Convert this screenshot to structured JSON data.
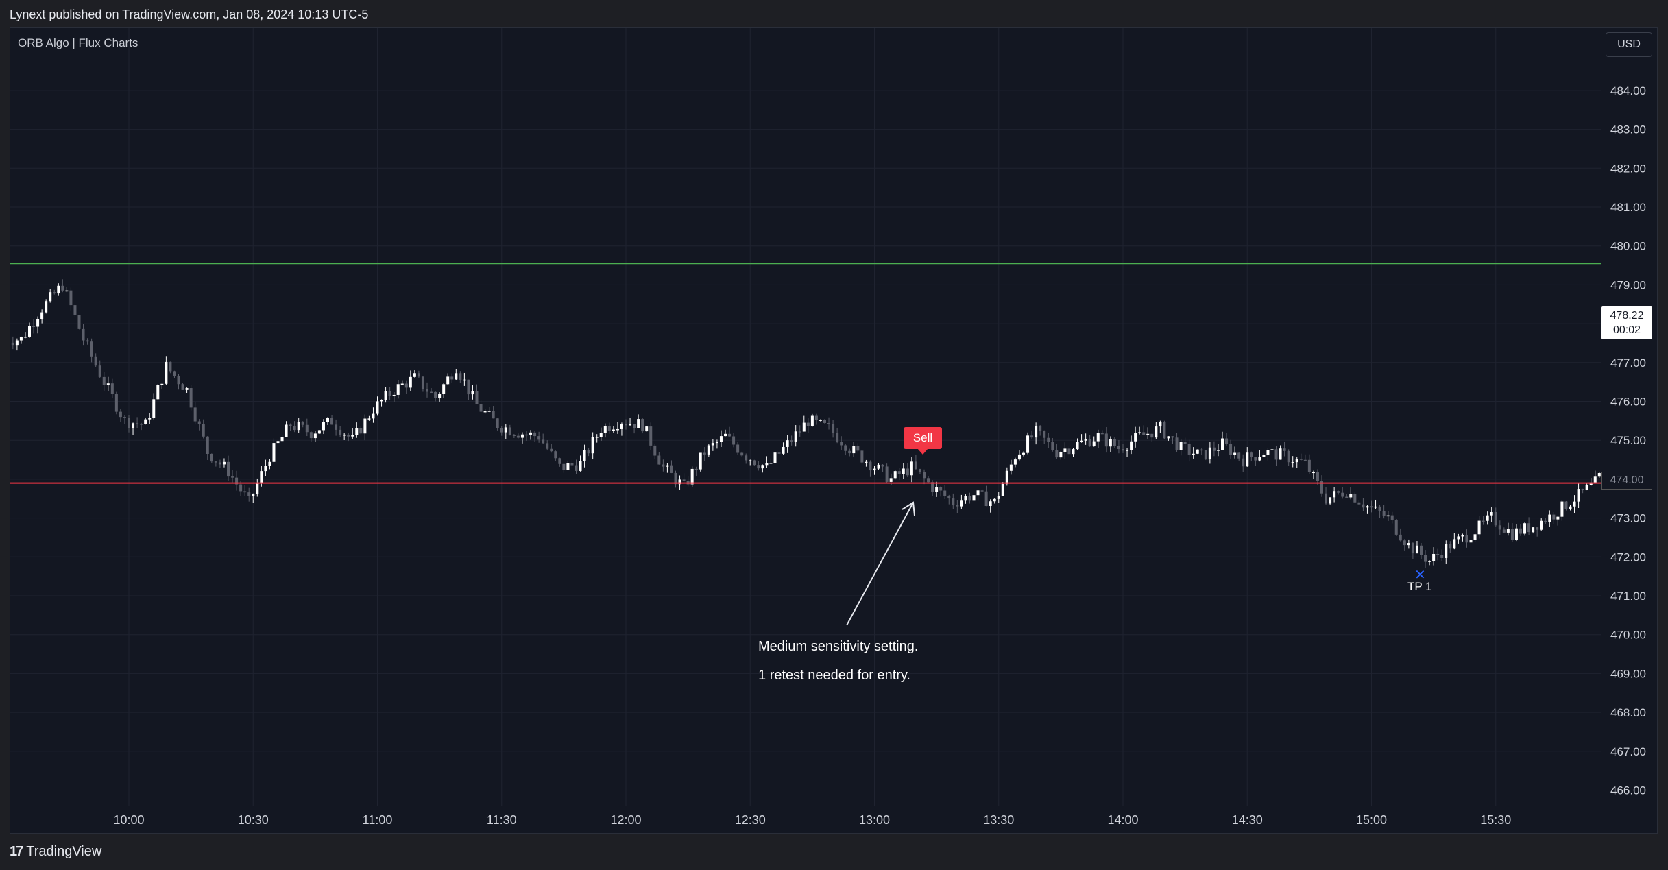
{
  "header": {
    "published_text": "Lynext published on TradingView.com, Jan 08, 2024 10:13 UTC-5"
  },
  "chart": {
    "indicator_title": "ORB Algo | Flux Charts",
    "currency": "USD",
    "last_price": "478.22",
    "countdown": "00:02",
    "level_tag": "474.00",
    "sell_label": "Sell",
    "tp_label": "TP 1",
    "tp_marker": "✕",
    "note_line1": "Medium sensitivity setting.",
    "note_line2": "1 retest needed for entry.",
    "colors": {
      "background": "#131722",
      "up_candle": "#ffffff",
      "down_candle": "#5d606b",
      "orb_high": "#4caf50",
      "orb_low": "#f23645",
      "tp_marker": "#2962ff"
    }
  },
  "footer": {
    "logo_text": "TradingView",
    "logo_mark": "17"
  },
  "chart_data": {
    "type": "candlestick",
    "title": "ORB Algo | Flux Charts",
    "price_ticks": [
      "466.00",
      "467.00",
      "468.00",
      "469.00",
      "470.00",
      "471.00",
      "472.00",
      "473.00",
      "474.00",
      "475.00",
      "476.00",
      "477.00",
      "478.00",
      "479.00",
      "480.00",
      "481.00",
      "482.00",
      "483.00",
      "484.00"
    ],
    "time_ticks": [
      "10:00",
      "10:30",
      "11:00",
      "11:30",
      "12:00",
      "12:30",
      "13:00",
      "13:30",
      "14:00",
      "14:30",
      "15:00",
      "15:30"
    ],
    "ylim": [
      465.6,
      485.0
    ],
    "session": [
      "09:30",
      "16:00"
    ],
    "orb_high": 479.55,
    "orb_low": 473.9,
    "last_price": 478.22,
    "sell_signal": {
      "time": "13:12",
      "price": 474.6,
      "label": "Sell"
    },
    "take_profit": {
      "time": "15:13",
      "price": 471.6,
      "label": "TP 1"
    },
    "closes": [
      {
        "t": "09:30",
        "c": 477.6
      },
      {
        "t": "09:35",
        "c": 478.4
      },
      {
        "t": "09:40",
        "c": 479.0
      },
      {
        "t": "09:45",
        "c": 477.6
      },
      {
        "t": "09:50",
        "c": 476.5
      },
      {
        "t": "09:55",
        "c": 475.5
      },
      {
        "t": "10:00",
        "c": 475.4
      },
      {
        "t": "10:05",
        "c": 476.9
      },
      {
        "t": "10:10",
        "c": 476.3
      },
      {
        "t": "10:15",
        "c": 474.7
      },
      {
        "t": "10:20",
        "c": 474.2
      },
      {
        "t": "10:25",
        "c": 473.4
      },
      {
        "t": "10:30",
        "c": 474.6
      },
      {
        "t": "10:35",
        "c": 475.4
      },
      {
        "t": "10:40",
        "c": 475.2
      },
      {
        "t": "10:45",
        "c": 475.5
      },
      {
        "t": "10:50",
        "c": 475.0
      },
      {
        "t": "10:55",
        "c": 475.8
      },
      {
        "t": "11:00",
        "c": 476.3
      },
      {
        "t": "11:05",
        "c": 476.6
      },
      {
        "t": "11:10",
        "c": 476.1
      },
      {
        "t": "11:15",
        "c": 476.9
      },
      {
        "t": "11:20",
        "c": 475.9
      },
      {
        "t": "11:25",
        "c": 475.4
      },
      {
        "t": "11:30",
        "c": 475.2
      },
      {
        "t": "11:35",
        "c": 475.1
      },
      {
        "t": "11:40",
        "c": 474.3
      },
      {
        "t": "11:45",
        "c": 474.4
      },
      {
        "t": "11:50",
        "c": 475.3
      },
      {
        "t": "11:55",
        "c": 475.5
      },
      {
        "t": "12:00",
        "c": 475.4
      },
      {
        "t": "12:05",
        "c": 474.3
      },
      {
        "t": "12:10",
        "c": 473.8
      },
      {
        "t": "12:15",
        "c": 474.7
      },
      {
        "t": "12:20",
        "c": 475.1
      },
      {
        "t": "12:25",
        "c": 474.6
      },
      {
        "t": "12:30",
        "c": 474.3
      },
      {
        "t": "12:35",
        "c": 474.9
      },
      {
        "t": "12:40",
        "c": 475.5
      },
      {
        "t": "12:45",
        "c": 475.3
      },
      {
        "t": "12:50",
        "c": 474.8
      },
      {
        "t": "12:55",
        "c": 474.4
      },
      {
        "t": "13:00",
        "c": 474.0
      },
      {
        "t": "13:05",
        "c": 474.3
      },
      {
        "t": "13:10",
        "c": 473.8
      },
      {
        "t": "13:15",
        "c": 473.4
      },
      {
        "t": "13:20",
        "c": 473.6
      },
      {
        "t": "13:25",
        "c": 473.4
      },
      {
        "t": "13:30",
        "c": 474.6
      },
      {
        "t": "13:35",
        "c": 475.2
      },
      {
        "t": "13:40",
        "c": 474.7
      },
      {
        "t": "13:45",
        "c": 474.9
      },
      {
        "t": "13:50",
        "c": 475.1
      },
      {
        "t": "13:55",
        "c": 474.8
      },
      {
        "t": "14:00",
        "c": 475.1
      },
      {
        "t": "14:05",
        "c": 475.3
      },
      {
        "t": "14:10",
        "c": 474.8
      },
      {
        "t": "14:15",
        "c": 474.6
      },
      {
        "t": "14:20",
        "c": 474.9
      },
      {
        "t": "14:25",
        "c": 474.5
      },
      {
        "t": "14:30",
        "c": 474.7
      },
      {
        "t": "14:35",
        "c": 474.6
      },
      {
        "t": "14:40",
        "c": 474.4
      },
      {
        "t": "14:45",
        "c": 473.5
      },
      {
        "t": "14:50",
        "c": 473.7
      },
      {
        "t": "14:55",
        "c": 473.3
      },
      {
        "t": "15:00",
        "c": 473.0
      },
      {
        "t": "15:05",
        "c": 472.3
      },
      {
        "t": "15:10",
        "c": 471.9
      },
      {
        "t": "15:15",
        "c": 472.3
      },
      {
        "t": "15:20",
        "c": 472.6
      },
      {
        "t": "15:25",
        "c": 473.0
      },
      {
        "t": "15:30",
        "c": 472.6
      },
      {
        "t": "15:35",
        "c": 472.8
      },
      {
        "t": "15:40",
        "c": 473.1
      },
      {
        "t": "15:45",
        "c": 473.5
      },
      {
        "t": "15:50",
        "c": 473.9
      },
      {
        "t": "15:55",
        "c": 474.6
      }
    ]
  }
}
